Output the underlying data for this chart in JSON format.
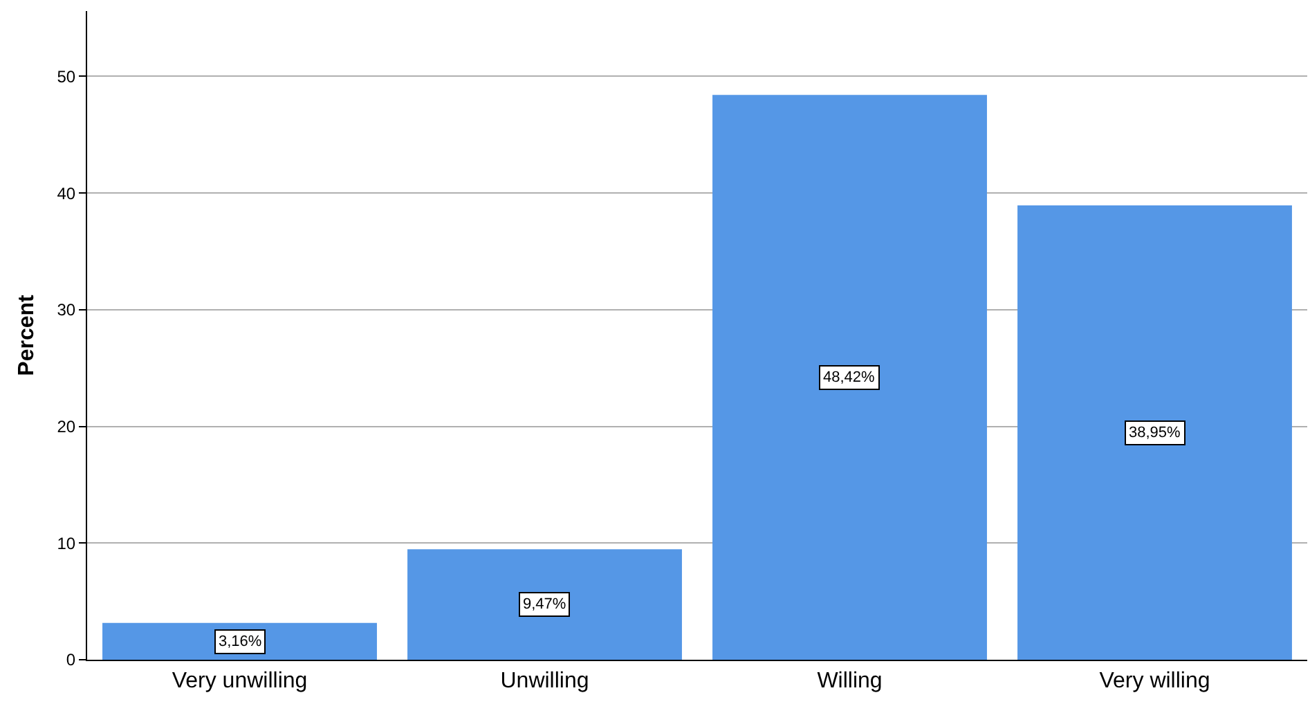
{
  "chart_data": {
    "type": "bar",
    "ylabel": "Percent",
    "categories": [
      "Very unwilling",
      "Unwilling",
      "Willing",
      "Very willing"
    ],
    "values": [
      3.16,
      9.47,
      48.42,
      38.95
    ],
    "value_labels": [
      "3,16%",
      "9,47%",
      "48,42%",
      "38,95%"
    ],
    "color": "#5597e6",
    "ylim": [
      0,
      55.6
    ],
    "yticks": [
      0,
      10,
      20,
      30,
      40,
      50
    ],
    "grid": "y"
  }
}
